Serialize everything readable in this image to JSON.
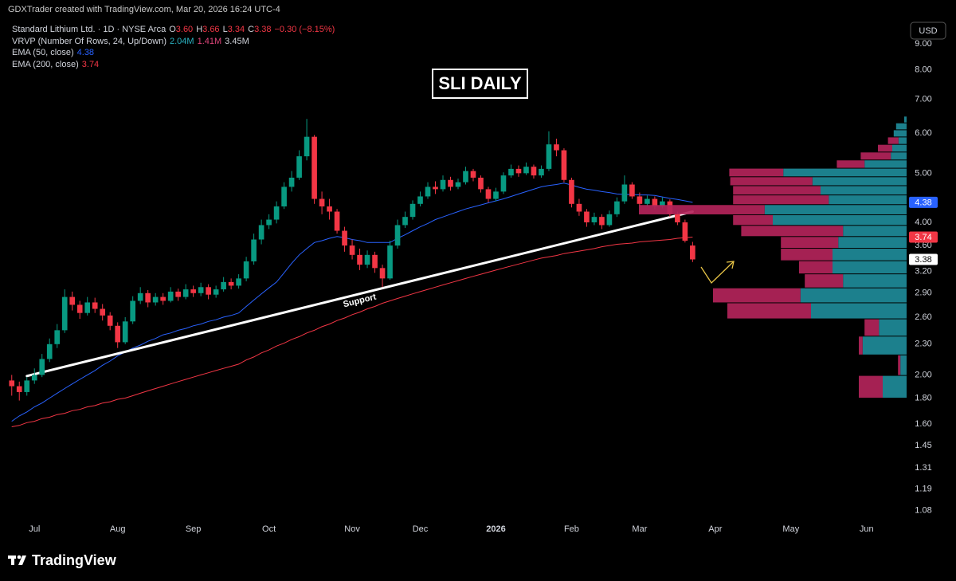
{
  "header": {
    "attribution": "GDXTrader created with TradingView.com, Mar 20, 2026 16:24 UTC-4",
    "logo": "TradingView"
  },
  "chart_data": {
    "type": "candlestick",
    "title": "SLI DAILY",
    "symbol": "Standard Lithium Ltd. · 1D · NYSE Arca",
    "ohlc_legend": [
      {
        "key": "O",
        "text": "3.60"
      },
      {
        "key": "H",
        "text": "3.66"
      },
      {
        "key": "L",
        "text": "3.34"
      },
      {
        "key": "C",
        "text": "3.38"
      }
    ],
    "change": "−0.30 (−8.15%)",
    "currency": "USD",
    "categories": [
      null,
      null,
      null,
      "Jul",
      null,
      null,
      null,
      null,
      null,
      null,
      null,
      null,
      null,
      null,
      "Aug",
      null,
      null,
      null,
      null,
      null,
      null,
      null,
      null,
      null,
      "Sep",
      null,
      null,
      null,
      null,
      null,
      null,
      null,
      null,
      null,
      "Oct",
      null,
      null,
      null,
      null,
      null,
      null,
      null,
      null,
      null,
      null,
      "Nov",
      null,
      null,
      null,
      null,
      null,
      null,
      null,
      null,
      "Dec",
      null,
      null,
      null,
      null,
      null,
      null,
      null,
      null,
      null,
      "2026",
      null,
      null,
      null,
      null,
      null,
      null,
      null,
      null,
      null,
      "Feb",
      null,
      null,
      null,
      null,
      null,
      null,
      null,
      null,
      "Mar",
      null,
      null,
      null,
      null,
      null,
      null,
      null,
      null,
      null,
      "Apr",
      null,
      null,
      null,
      null,
      null,
      null,
      null,
      null,
      null,
      "May",
      null,
      null,
      null,
      null,
      null,
      null,
      null,
      null,
      null,
      "Jun",
      null,
      null,
      null,
      null,
      null
    ],
    "open": [
      1.95,
      1.9,
      1.85,
      1.95,
      2.0,
      2.15,
      2.3,
      2.45,
      2.85,
      2.75,
      2.65,
      2.78,
      2.7,
      2.62,
      2.5,
      2.32,
      2.55,
      2.8,
      2.9,
      2.78,
      2.85,
      2.8,
      2.92,
      2.85,
      2.95,
      2.9,
      2.98,
      2.88,
      2.95,
      3.05,
      3.0,
      3.1,
      3.35,
      3.7,
      3.95,
      4.05,
      4.3,
      4.7,
      4.9,
      5.4,
      5.9,
      4.45,
      4.3,
      4.2,
      3.85,
      3.6,
      3.45,
      3.3,
      3.45,
      3.25,
      3.1,
      3.6,
      3.95,
      4.1,
      4.35,
      4.5,
      4.7,
      4.65,
      4.85,
      4.7,
      4.8,
      5.05,
      4.9,
      4.65,
      4.45,
      4.6,
      4.95,
      5.1,
      5.0,
      5.15,
      4.95,
      5.1,
      5.7,
      5.55,
      4.85,
      4.35,
      4.2,
      4.0,
      4.1,
      3.95,
      4.15,
      4.4,
      4.75,
      4.5,
      4.35,
      4.45,
      4.3,
      4.4,
      4.15,
      4.0,
      3.6,
      null,
      null,
      null,
      null,
      null,
      null,
      null,
      null,
      null,
      null,
      null,
      null,
      null,
      null,
      null,
      null,
      null,
      null,
      null,
      null,
      null,
      null,
      null,
      null,
      null,
      null,
      null,
      null
    ],
    "high": [
      2.0,
      1.94,
      1.98,
      2.06,
      2.2,
      2.36,
      2.52,
      2.95,
      2.92,
      2.8,
      2.85,
      2.84,
      2.76,
      2.66,
      2.54,
      2.6,
      2.86,
      2.98,
      2.94,
      2.9,
      2.9,
      2.98,
      2.96,
      3.02,
      3.0,
      3.04,
      3.02,
      3.0,
      3.12,
      3.1,
      3.16,
      3.42,
      3.8,
      4.05,
      4.15,
      4.4,
      4.8,
      5.05,
      5.55,
      6.4,
      5.95,
      4.6,
      4.45,
      4.25,
      3.92,
      3.7,
      3.55,
      3.52,
      3.5,
      3.3,
      3.68,
      4.05,
      4.2,
      4.42,
      4.6,
      4.8,
      4.82,
      4.95,
      4.92,
      4.88,
      5.15,
      5.1,
      4.95,
      4.7,
      4.68,
      5.02,
      5.2,
      5.18,
      5.25,
      5.2,
      5.18,
      6.05,
      5.85,
      5.6,
      4.9,
      4.45,
      4.25,
      4.18,
      4.15,
      4.22,
      4.48,
      4.95,
      4.8,
      4.58,
      4.52,
      4.5,
      4.48,
      4.44,
      4.2,
      4.05,
      3.66,
      null,
      null,
      null,
      null,
      null,
      null,
      null,
      null,
      null,
      null,
      null,
      null,
      null,
      null,
      null,
      null,
      null,
      null,
      null,
      null,
      null,
      null,
      null,
      null,
      null,
      null,
      null,
      null
    ],
    "low": [
      1.82,
      1.78,
      1.82,
      1.92,
      1.98,
      2.12,
      2.26,
      2.42,
      2.68,
      2.58,
      2.62,
      2.65,
      2.56,
      2.45,
      2.26,
      2.3,
      2.52,
      2.76,
      2.72,
      2.74,
      2.75,
      2.78,
      2.8,
      2.82,
      2.85,
      2.86,
      2.82,
      2.84,
      2.92,
      2.95,
      2.96,
      3.06,
      3.3,
      3.62,
      3.88,
      3.98,
      4.25,
      4.6,
      4.85,
      5.3,
      4.35,
      4.15,
      4.05,
      3.8,
      3.5,
      3.38,
      3.22,
      3.25,
      3.18,
      2.98,
      3.08,
      3.55,
      3.9,
      4.05,
      4.3,
      4.45,
      4.55,
      4.6,
      4.62,
      4.65,
      4.75,
      4.82,
      4.58,
      4.38,
      4.4,
      4.55,
      4.9,
      4.92,
      4.96,
      4.88,
      4.9,
      5.05,
      5.4,
      4.8,
      4.28,
      4.12,
      3.92,
      3.95,
      3.88,
      3.92,
      4.1,
      4.35,
      4.45,
      4.3,
      4.3,
      4.25,
      4.26,
      4.1,
      3.95,
      3.65,
      3.34,
      null,
      null,
      null,
      null,
      null,
      null,
      null,
      null,
      null,
      null,
      null,
      null,
      null,
      null,
      null,
      null,
      null,
      null,
      null,
      null,
      null,
      null,
      null,
      null,
      null,
      null,
      null,
      null
    ],
    "close": [
      1.9,
      1.85,
      1.95,
      2.0,
      2.15,
      2.3,
      2.45,
      2.85,
      2.75,
      2.65,
      2.78,
      2.7,
      2.62,
      2.5,
      2.32,
      2.55,
      2.8,
      2.9,
      2.78,
      2.85,
      2.8,
      2.92,
      2.85,
      2.95,
      2.9,
      2.98,
      2.88,
      2.95,
      3.05,
      3.0,
      3.1,
      3.35,
      3.7,
      3.95,
      4.05,
      4.3,
      4.7,
      4.9,
      5.4,
      5.9,
      4.45,
      4.3,
      4.2,
      3.85,
      3.6,
      3.45,
      3.3,
      3.45,
      3.25,
      3.1,
      3.6,
      3.95,
      4.1,
      4.35,
      4.5,
      4.7,
      4.65,
      4.85,
      4.7,
      4.8,
      5.05,
      4.9,
      4.65,
      4.45,
      4.6,
      4.95,
      5.1,
      5.0,
      5.15,
      4.95,
      5.1,
      5.7,
      5.55,
      4.85,
      4.35,
      4.2,
      4.0,
      4.1,
      3.95,
      4.15,
      4.4,
      4.75,
      4.5,
      4.35,
      4.45,
      4.3,
      4.4,
      4.15,
      4.0,
      3.68,
      3.38,
      null,
      null,
      null,
      null,
      null,
      null,
      null,
      null,
      null,
      null,
      null,
      null,
      null,
      null,
      null,
      null,
      null,
      null,
      null,
      null,
      null,
      null,
      null,
      null,
      null,
      null,
      null,
      null
    ],
    "up_color": "#089981",
    "down_color": "#f23645",
    "series": [
      {
        "name": "EMA (50, close)",
        "color": "#2962ff",
        "values": [
          1.62,
          1.66,
          1.69,
          1.73,
          1.76,
          1.8,
          1.84,
          1.88,
          1.92,
          1.96,
          2.0,
          2.04,
          2.09,
          2.13,
          2.18,
          2.22,
          2.26,
          2.29,
          2.33,
          2.36,
          2.4,
          2.42,
          2.45,
          2.47,
          2.5,
          2.52,
          2.55,
          2.57,
          2.6,
          2.62,
          2.65,
          2.73,
          2.81,
          2.89,
          2.97,
          3.05,
          3.18,
          3.32,
          3.45,
          3.55,
          3.65,
          3.68,
          3.72,
          3.75,
          3.73,
          3.7,
          3.68,
          3.65,
          3.65,
          3.65,
          3.65,
          3.72,
          3.78,
          3.85,
          3.92,
          3.98,
          4.05,
          4.1,
          4.15,
          4.2,
          4.25,
          4.29,
          4.33,
          4.37,
          4.41,
          4.45,
          4.5,
          4.55,
          4.6,
          4.65,
          4.7,
          4.73,
          4.75,
          4.78,
          4.74,
          4.69,
          4.65,
          4.63,
          4.6,
          4.58,
          4.55,
          4.54,
          4.54,
          4.53,
          4.53,
          4.52,
          4.49,
          4.46,
          4.44,
          4.41,
          4.38,
          null,
          null,
          null,
          null,
          null,
          null,
          null,
          null,
          null,
          null,
          null,
          null,
          null,
          null,
          null,
          null,
          null,
          null,
          null,
          null,
          null,
          null,
          null,
          null,
          null,
          null,
          null,
          null
        ]
      },
      {
        "name": "EMA (200, close)",
        "color": "#f23645",
        "values": [
          1.58,
          1.59,
          1.61,
          1.62,
          1.64,
          1.65,
          1.67,
          1.68,
          1.7,
          1.71,
          1.73,
          1.74,
          1.76,
          1.77,
          1.79,
          1.8,
          1.82,
          1.84,
          1.86,
          1.88,
          1.9,
          1.92,
          1.94,
          1.96,
          1.98,
          2.0,
          2.02,
          2.04,
          2.06,
          2.08,
          2.1,
          2.14,
          2.17,
          2.21,
          2.24,
          2.28,
          2.31,
          2.35,
          2.38,
          2.42,
          2.45,
          2.49,
          2.52,
          2.56,
          2.59,
          2.63,
          2.66,
          2.7,
          2.73,
          2.77,
          2.8,
          2.83,
          2.86,
          2.89,
          2.92,
          2.95,
          2.98,
          3.01,
          3.04,
          3.07,
          3.1,
          3.13,
          3.16,
          3.19,
          3.22,
          3.25,
          3.28,
          3.31,
          3.34,
          3.37,
          3.4,
          3.42,
          3.44,
          3.47,
          3.49,
          3.51,
          3.53,
          3.55,
          3.58,
          3.6,
          3.62,
          3.63,
          3.64,
          3.66,
          3.67,
          3.68,
          3.69,
          3.7,
          3.72,
          3.73,
          3.74,
          null,
          null,
          null,
          null,
          null,
          null,
          null,
          null,
          null,
          null,
          null,
          null,
          null,
          null,
          null,
          null,
          null,
          null,
          null,
          null,
          null,
          null,
          null,
          null,
          null,
          null,
          null,
          null
        ]
      }
    ],
    "volume_profile": {
      "name": "VRVP (Number Of Rows, 24, Up/Down)",
      "legend": [
        "2.04M",
        "1.41M",
        "3.45M"
      ],
      "bins": [
        1.8,
        1.995,
        2.19,
        2.385,
        2.58,
        2.775,
        2.97,
        3.165,
        3.36,
        3.555,
        3.75,
        3.945,
        4.14,
        4.335,
        4.53,
        4.725,
        4.92,
        5.115,
        5.31,
        5.505,
        5.7,
        5.895,
        6.09,
        6.285,
        6.48
      ],
      "up": [
        5.0,
        1.3,
        9.2,
        5.8,
        20.0,
        22.2,
        13.3,
        15.5,
        15.5,
        14.3,
        13.3,
        28.0,
        29.7,
        16.3,
        18.0,
        19.7,
        25.8,
        8.8,
        3.3,
        3.0,
        1.7,
        2.7,
        2.2,
        0.5
      ],
      "down": [
        5.0,
        0.5,
        0.8,
        3.0,
        17.5,
        18.3,
        8.0,
        7.0,
        10.8,
        12.0,
        21.3,
        8.3,
        26.3,
        20.0,
        18.3,
        17.2,
        11.3,
        5.8,
        6.3,
        3.0,
        2.2,
        0,
        0,
        0
      ],
      "up_color": "#1e8b99",
      "down_color": "#b3245a"
    },
    "support": {
      "label": "Support",
      "start": {
        "category": 2,
        "value": 1.99
      },
      "end": {
        "category": 90,
        "value": 4.2
      }
    },
    "log_scale": true,
    "grid": false,
    "ylim": [
      0.95,
      10.07
    ],
    "yticks": [
      {
        "value": 9,
        "label": "9.00"
      },
      {
        "value": 8,
        "label": "8.00"
      },
      {
        "value": 7,
        "label": "7.00"
      },
      {
        "value": 6,
        "label": "6.00"
      },
      {
        "value": 5,
        "label": "5.00"
      },
      {
        "value": 4,
        "label": "4.00"
      },
      {
        "value": 3.6,
        "label": "3.60"
      },
      {
        "value": 3.2,
        "label": "3.20"
      },
      {
        "value": 2.9,
        "label": "2.90"
      },
      {
        "value": 2.6,
        "label": "2.60"
      },
      {
        "value": 2.3,
        "label": "2.30"
      },
      {
        "value": 2,
        "label": "2.00"
      },
      {
        "value": 1.8,
        "label": "1.80"
      },
      {
        "value": 1.6,
        "label": "1.60"
      },
      1.45,
      1.31,
      1.19,
      1.08
    ]
  }
}
